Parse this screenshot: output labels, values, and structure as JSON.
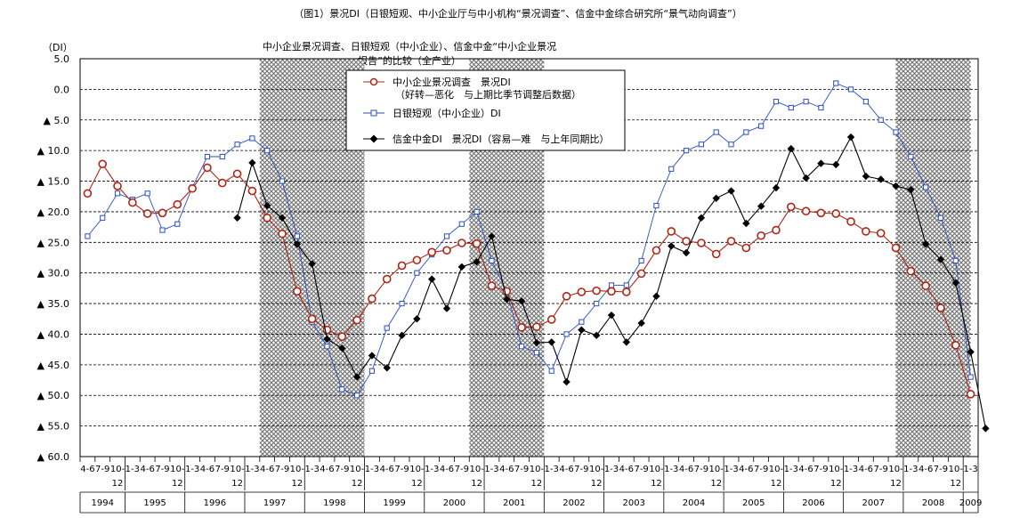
{
  "title": "（图1）景况DI（日银短观、中小企业厅与中小机构“景况调查”、信金中金综合研究所“景气动向调查”）",
  "subtitle": "中小企业景况调查、日银短观（中小企业）、信金中金“中小企业景况报告”的比较（全产业）",
  "unit": "（DI）",
  "legend": {
    "s1_line1": "中小企业景况调查　景况DI",
    "s1_line2": "（好转—恶化　与上期比季节调整后数据）",
    "s2": "日银短观（中小企业）DI",
    "s3": "信金中金DI　景况DI（容易—难　与上年同期比）"
  },
  "colors": {
    "series1": "#b02414",
    "series2": "#2a4fc4",
    "series3": "#000000",
    "recession_hatch": "#8a8a8a"
  },
  "chart_data": {
    "type": "line",
    "ylim": [
      -60,
      5
    ],
    "yticks": [
      5,
      0,
      -5,
      -10,
      -15,
      -20,
      -25,
      -30,
      -35,
      -40,
      -45,
      -50,
      -55,
      -60
    ],
    "ytick_labels": [
      "5.0",
      "0.0",
      "▲ 5.0",
      "▲ 10.0",
      "▲ 15.0",
      "▲ 20.0",
      "▲ 25.0",
      "▲ 30.0",
      "▲ 35.0",
      "▲ 40.0",
      "▲ 45.0",
      "▲ 50.0",
      "▲ 55.0",
      "▲ 60.0"
    ],
    "quarter_labels": [
      "4-6",
      "7-9",
      "10-12",
      "1-3",
      "4-6",
      "7-9",
      "10-12",
      "1-3",
      "4-6",
      "7-9",
      "10-12",
      "1-3",
      "4-6",
      "7-9",
      "10-12",
      "1-3",
      "4-6",
      "7-9",
      "10-12",
      "1-3",
      "4-6",
      "7-9",
      "10-12",
      "1-3",
      "4-6",
      "7-9",
      "10-12",
      "1-3",
      "4-6",
      "7-9",
      "10-12",
      "1-3",
      "4-6",
      "7-9",
      "10-12",
      "1-3",
      "4-6",
      "7-9",
      "10-12",
      "1-3",
      "4-6",
      "7-9",
      "10-12",
      "1-3",
      "4-6",
      "7-9",
      "10-12",
      "1-3",
      "4-6",
      "7-9",
      "10-12",
      "1-3",
      "4-6",
      "7-9",
      "10-12",
      "1-3",
      "4-6",
      "7-9",
      "10-12",
      "1-3"
    ],
    "years": [
      {
        "label": "1994",
        "start": 0,
        "end": 3
      },
      {
        "label": "1995",
        "start": 3,
        "end": 7
      },
      {
        "label": "1996",
        "start": 7,
        "end": 11
      },
      {
        "label": "1997",
        "start": 11,
        "end": 15
      },
      {
        "label": "1998",
        "start": 15,
        "end": 19
      },
      {
        "label": "1999",
        "start": 19,
        "end": 23
      },
      {
        "label": "2000",
        "start": 23,
        "end": 27
      },
      {
        "label": "2001",
        "start": 27,
        "end": 31
      },
      {
        "label": "2002",
        "start": 31,
        "end": 35
      },
      {
        "label": "2003",
        "start": 35,
        "end": 39
      },
      {
        "label": "2004",
        "start": 39,
        "end": 43
      },
      {
        "label": "2005",
        "start": 43,
        "end": 47
      },
      {
        "label": "2006",
        "start": 47,
        "end": 51
      },
      {
        "label": "2007",
        "start": 51,
        "end": 55
      },
      {
        "label": "2008",
        "start": 55,
        "end": 59
      },
      {
        "label": "2009",
        "start": 59,
        "end": 60
      }
    ],
    "recession_shading": [
      [
        12,
        19
      ],
      [
        26,
        31
      ],
      [
        54.5,
        59.5
      ]
    ],
    "series": [
      {
        "name": "中小企业景况调查　景况DI",
        "marker": "circle",
        "values": [
          -17.0,
          -12.2,
          -15.8,
          -18.5,
          -20.3,
          -20.2,
          -18.8,
          -16.2,
          -12.8,
          -15.3,
          -13.8,
          -16.6,
          -21.0,
          -23.6,
          -33.0,
          -37.5,
          -39.3,
          -40.4,
          -37.7,
          -34.2,
          -31.0,
          -28.8,
          -27.9,
          -26.6,
          -26.3,
          -25.1,
          -25.2,
          -32.1,
          -33.0,
          -38.9,
          -38.8,
          -37.6,
          -33.8,
          -33.1,
          -32.9,
          -33.0,
          -33.1,
          -30.1,
          -26.3,
          -23.2,
          -24.8,
          -25.1,
          -26.9,
          -24.8,
          -25.9,
          -23.9,
          -23.0,
          -19.2,
          -19.9,
          -20.2,
          -20.3,
          -21.6,
          -23.2,
          -23.5,
          -25.9,
          -29.7,
          -32.1,
          -35.7,
          -41.8,
          -49.8
        ]
      },
      {
        "name": "日银短观（中小企业）DI",
        "marker": "square",
        "values": [
          -24.0,
          -21.0,
          -17.0,
          -18.0,
          -17.0,
          -23.0,
          -22.0,
          -16.0,
          -11.0,
          -11.0,
          -9.0,
          -8.0,
          -10.0,
          -15.0,
          -24.0,
          -38.0,
          -42.0,
          -49.0,
          -50.0,
          -46.0,
          -39.0,
          -35.0,
          -30.0,
          -27.0,
          -24.0,
          -22.0,
          -20.0,
          -28.0,
          -33.0,
          -42.0,
          -43.0,
          -46.0,
          -40.0,
          -38.0,
          -35.0,
          -32.0,
          -32.0,
          -28.0,
          -19.0,
          -13.0,
          -10.0,
          -9.0,
          -7.0,
          -9.0,
          -7.0,
          -6.0,
          -2.0,
          -3.0,
          -2.0,
          -3.0,
          1.0,
          0.0,
          -2.0,
          -5.0,
          -7.0,
          -11.0,
          -16.0,
          -21.0,
          -28.0,
          -47.0
        ]
      },
      {
        "name": "信金中金DI　景况DI（容易—难　与上年同期比）",
        "marker": "diamond",
        "start_index": 10,
        "values": [
          -21.0,
          -12.0,
          -19.0,
          -21.0,
          -25.3,
          -28.5,
          -40.8,
          -42.3,
          -47.0,
          -43.5,
          -45.5,
          -40.2,
          -37.5,
          -31.0,
          -35.8,
          -29.0,
          -28.2,
          -24.0,
          -34.3,
          -34.6,
          -41.4,
          -41.3,
          -47.8,
          -39.3,
          -40.2,
          -36.9,
          -41.3,
          -38.2,
          -33.8,
          -25.6,
          -26.7,
          -21.0,
          -17.8,
          -16.6,
          -21.9,
          -19.1,
          -16.1,
          -9.7,
          -14.5,
          -12.1,
          -12.3,
          -7.8,
          -14.2,
          -14.7,
          -15.8,
          -16.4,
          -25.3,
          -27.8,
          -31.6,
          -42.9,
          -55.4
        ]
      }
    ]
  }
}
